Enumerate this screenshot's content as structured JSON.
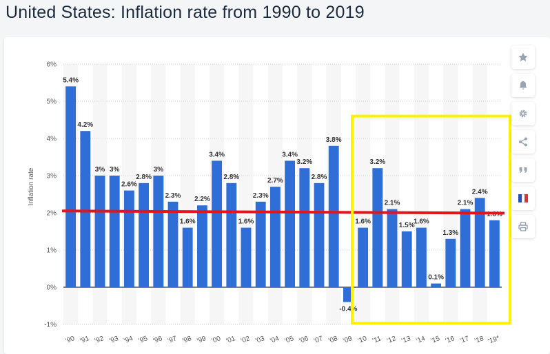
{
  "page": {
    "title": "United States: Inflation rate from 1990 to 2019"
  },
  "toolbar": {
    "buttons": [
      {
        "name": "favorite-button",
        "icon": "star-icon"
      },
      {
        "name": "notification-button",
        "icon": "bell-icon"
      },
      {
        "name": "settings-button",
        "icon": "gear-icon"
      },
      {
        "name": "share-button",
        "icon": "share-icon"
      },
      {
        "name": "cite-button",
        "icon": "quote-icon"
      },
      {
        "name": "language-button",
        "icon": "flag-france-icon"
      },
      {
        "name": "print-button",
        "icon": "printer-icon"
      }
    ]
  },
  "colors": {
    "bar": "#2f6ed6",
    "reference_line": "#e3141b",
    "highlight_box": "#fff200",
    "grid": "#cccccc",
    "stripe": "#f6f6f6"
  },
  "chart_data": {
    "type": "bar",
    "title": "United States: Inflation rate from 1990 to 2019",
    "xlabel": "",
    "ylabel": "Inflation rate",
    "ylim": [
      -1,
      6
    ],
    "yticks": [
      "-1%",
      "0%",
      "1%",
      "2%",
      "3%",
      "4%",
      "5%",
      "6%"
    ],
    "ytick_values": [
      -1,
      0,
      1,
      2,
      3,
      4,
      5,
      6
    ],
    "grid": "dotted horizontal",
    "categories": [
      "'90",
      "'91",
      "'92",
      "'93",
      "'94",
      "'95",
      "'96",
      "'97",
      "'98",
      "'99",
      "'00",
      "'01",
      "'02",
      "'03",
      "'04",
      "'05",
      "'06",
      "'07",
      "'08",
      "'09",
      "'10",
      "'11",
      "'12",
      "'13",
      "'14",
      "'15",
      "'16",
      "'17",
      "'18",
      "'19*"
    ],
    "values": [
      5.4,
      4.2,
      3,
      3,
      2.6,
      2.8,
      3,
      2.3,
      1.6,
      2.2,
      3.4,
      2.8,
      1.6,
      2.3,
      2.7,
      3.4,
      3.2,
      2.8,
      3.8,
      -0.4,
      1.6,
      3.2,
      2.1,
      1.5,
      1.6,
      0.1,
      1.3,
      2.1,
      2.4,
      1.8
    ],
    "value_labels": [
      "5.4%",
      "4.2%",
      "3%",
      "3%",
      "2.6%",
      "2.8%",
      "3%",
      "2.3%",
      "1.6%",
      "2.2%",
      "3.4%",
      "2.8%",
      "1.6%",
      "2.3%",
      "2.7%",
      "3.4%",
      "3.2%",
      "2.8%",
      "3.8%",
      "-0.4%",
      "1.6%",
      "3.2%",
      "2.1%",
      "1.5%",
      "1.6%",
      "0.1%",
      "1.3%",
      "2.1%",
      "2.4%",
      "1.8%"
    ],
    "annotations": {
      "reference_line_value": 2.02,
      "highlight_range": [
        "'10",
        "'19*"
      ]
    }
  }
}
